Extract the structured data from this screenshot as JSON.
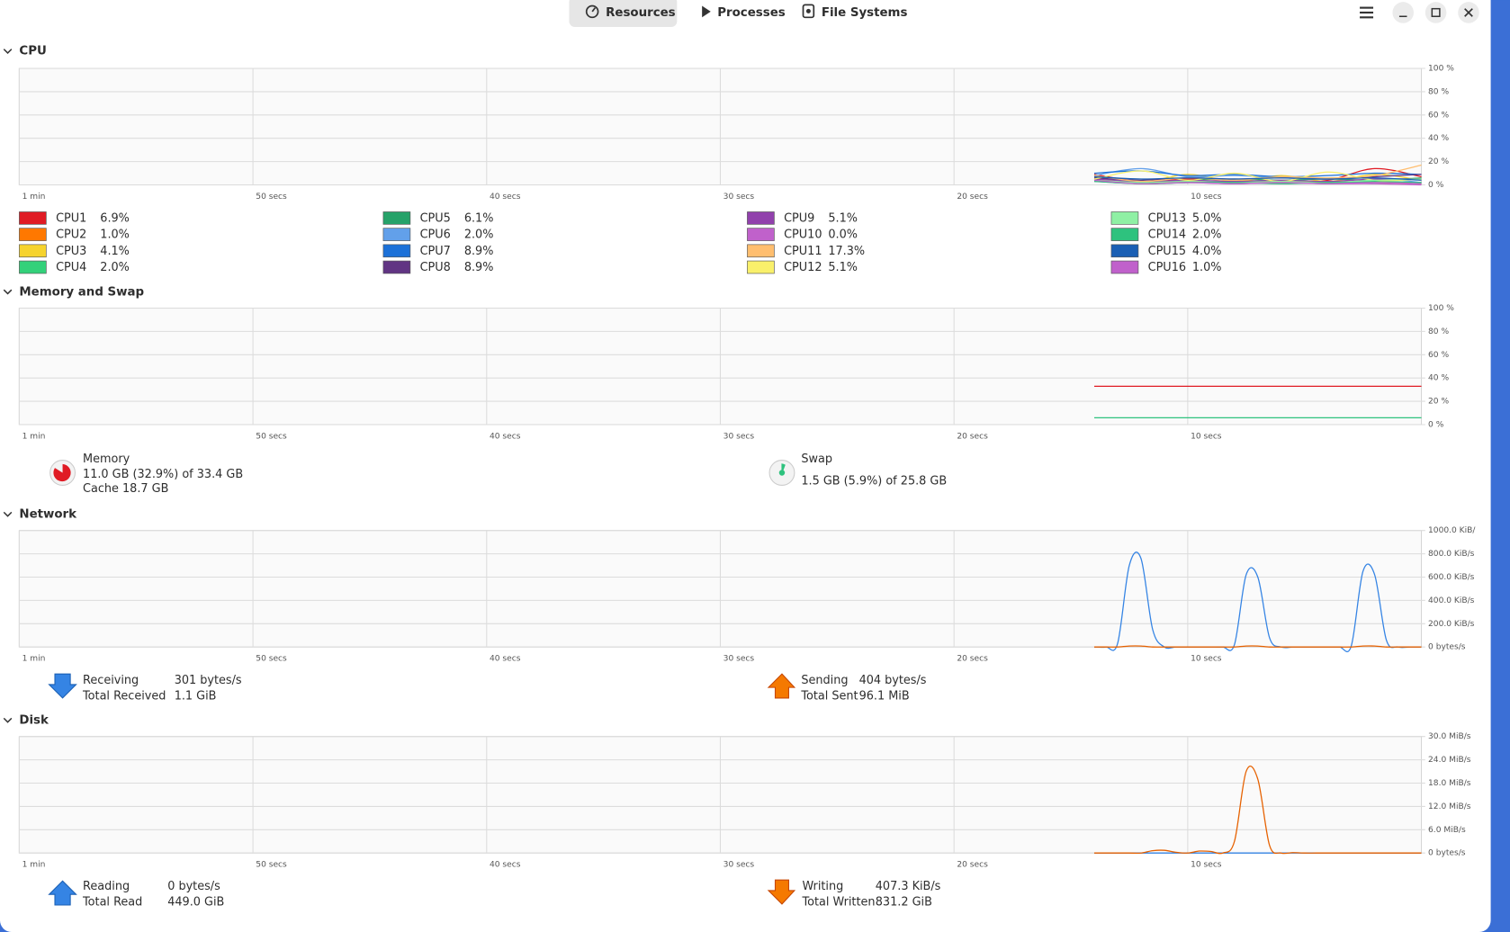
{
  "header": {
    "tabs": [
      "Resources",
      "Processes",
      "File Systems"
    ]
  },
  "chart_data": [
    {
      "type": "line",
      "title": "CPU",
      "xlim": [
        60,
        0
      ],
      "ylim": [
        0,
        100
      ],
      "xticks": [
        {
          "value": 60,
          "label": "1 min"
        },
        {
          "value": 50,
          "label": "50 secs"
        },
        {
          "value": 40,
          "label": "40 secs"
        },
        {
          "value": 30,
          "label": "30 secs"
        },
        {
          "value": 20,
          "label": "20 secs"
        },
        {
          "value": 10,
          "label": "10 secs"
        }
      ],
      "yticks": [
        {
          "value": 100,
          "label": "100 %"
        },
        {
          "value": 80,
          "label": "80 %"
        },
        {
          "value": 60,
          "label": "60 %"
        },
        {
          "value": 40,
          "label": "40 %"
        },
        {
          "value": 20,
          "label": "20 %"
        },
        {
          "value": 0,
          "label": "0 %"
        }
      ],
      "x": [
        14,
        12,
        10,
        8,
        6,
        4,
        2,
        0
      ],
      "series": [
        {
          "name": "CPU1",
          "color": "#e01b24",
          "info": [
            "6.9%"
          ],
          "values": [
            9,
            3,
            5,
            4,
            3,
            4,
            14,
            7
          ]
        },
        {
          "name": "CPU2",
          "color": "#ff7800",
          "info": [
            "1.0%"
          ],
          "values": [
            5,
            2,
            3,
            2,
            2,
            3,
            2,
            1
          ]
        },
        {
          "name": "CPU3",
          "color": "#f6d32d",
          "info": [
            "4.1%"
          ],
          "values": [
            6,
            2,
            9,
            3,
            8,
            3,
            9,
            4
          ]
        },
        {
          "name": "CPU4",
          "color": "#33d17a",
          "info": [
            "2.0%"
          ],
          "values": [
            4,
            1,
            2,
            3,
            2,
            2,
            3,
            2
          ]
        },
        {
          "name": "CPU5",
          "color": "#26a269",
          "info": [
            "6.1%"
          ],
          "values": [
            7,
            2,
            4,
            5,
            4,
            5,
            4,
            6
          ]
        },
        {
          "name": "CPU6",
          "color": "#62a0ea",
          "info": [
            "2.0%"
          ],
          "values": [
            8,
            14,
            7,
            8,
            6,
            5,
            6,
            2
          ]
        },
        {
          "name": "CPU7",
          "color": "#1c71d8",
          "info": [
            "8.9%"
          ],
          "values": [
            10,
            12,
            8,
            9,
            7,
            8,
            10,
            9
          ]
        },
        {
          "name": "CPU8",
          "color": "#613583",
          "info": [
            "8.9%"
          ],
          "values": [
            6,
            4,
            6,
            5,
            6,
            5,
            7,
            9
          ]
        },
        {
          "name": "CPU9",
          "color": "#9141ac",
          "info": [
            "5.1%"
          ],
          "values": [
            5,
            3,
            4,
            3,
            4,
            3,
            5,
            5
          ]
        },
        {
          "name": "CPU10",
          "color": "#c061cb",
          "info": [
            "0.0%"
          ],
          "values": [
            3,
            1,
            2,
            1,
            2,
            1,
            1,
            0
          ]
        },
        {
          "name": "CPU11",
          "color": "#ffbe6f",
          "info": [
            "17.3%"
          ],
          "values": [
            8,
            3,
            6,
            4,
            7,
            6,
            8,
            17
          ]
        },
        {
          "name": "CPU12",
          "color": "#f9f06b",
          "info": [
            "5.1%"
          ],
          "values": [
            5,
            12,
            4,
            10,
            3,
            11,
            4,
            5
          ]
        },
        {
          "name": "CPU13",
          "color": "#8ff0a4",
          "info": [
            "5.0%"
          ],
          "values": [
            4,
            2,
            3,
            2,
            3,
            2,
            4,
            5
          ]
        },
        {
          "name": "CPU14",
          "color": "#2ec27e",
          "info": [
            "2.0%"
          ],
          "values": [
            3,
            1,
            2,
            2,
            1,
            2,
            2,
            2
          ]
        },
        {
          "name": "CPU15",
          "color": "#1a5fb4",
          "info": [
            "4.0%"
          ],
          "values": [
            7,
            5,
            6,
            5,
            6,
            5,
            6,
            4
          ]
        },
        {
          "name": "CPU16",
          "color": "#c061cb",
          "info": [
            "1.0%"
          ],
          "values": [
            4,
            1,
            2,
            1,
            2,
            1,
            2,
            1
          ]
        }
      ]
    },
    {
      "type": "line",
      "title": "Memory and Swap",
      "xlim": [
        60,
        0
      ],
      "ylim": [
        0,
        100
      ],
      "xticks": [
        {
          "value": 60,
          "label": "1 min"
        },
        {
          "value": 50,
          "label": "50 secs"
        },
        {
          "value": 40,
          "label": "40 secs"
        },
        {
          "value": 30,
          "label": "30 secs"
        },
        {
          "value": 20,
          "label": "20 secs"
        },
        {
          "value": 10,
          "label": "10 secs"
        }
      ],
      "yticks": [
        {
          "value": 100,
          "label": "100 %"
        },
        {
          "value": 80,
          "label": "80 %"
        },
        {
          "value": 60,
          "label": "60 %"
        },
        {
          "value": 40,
          "label": "40 %"
        },
        {
          "value": 20,
          "label": "20 %"
        },
        {
          "value": 0,
          "label": "0 %"
        }
      ],
      "x": [
        14,
        0
      ],
      "series": [
        {
          "name": "Memory",
          "color": "#e01b24",
          "info": [
            "11.0 GB (32.9%) of 33.4 GB",
            "Cache 18.7 GB"
          ],
          "values": [
            32.9,
            32.9
          ]
        },
        {
          "name": "Swap",
          "color": "#2ec27e",
          "info": [
            "1.5 GB (5.9%) of 25.8 GB"
          ],
          "values": [
            5.9,
            5.9
          ]
        }
      ]
    },
    {
      "type": "line",
      "title": "Network",
      "xlim": [
        60,
        0
      ],
      "ylim": [
        0,
        1000
      ],
      "xticks": [
        {
          "value": 60,
          "label": "1 min"
        },
        {
          "value": 50,
          "label": "50 secs"
        },
        {
          "value": 40,
          "label": "40 secs"
        },
        {
          "value": 30,
          "label": "30 secs"
        },
        {
          "value": 20,
          "label": "20 secs"
        },
        {
          "value": 10,
          "label": "10 secs"
        }
      ],
      "yticks": [
        {
          "value": 1000,
          "label": "1000.0 KiB/"
        },
        {
          "value": 800,
          "label": "800.0 KiB/s"
        },
        {
          "value": 600,
          "label": "600.0 KiB/s"
        },
        {
          "value": 400,
          "label": "400.0 KiB/s"
        },
        {
          "value": 200,
          "label": "200.0 KiB/s"
        },
        {
          "value": 0,
          "label": "0 bytes/s"
        }
      ],
      "x": [
        14,
        13.5,
        13,
        12.5,
        12,
        11.5,
        11,
        10.5,
        10,
        9.5,
        9,
        8.5,
        8,
        7.5,
        7,
        6.5,
        6,
        5.5,
        5,
        4.5,
        4,
        3.5,
        3,
        2.5,
        2,
        1.5,
        1,
        0.5,
        0
      ],
      "series": [
        {
          "name": "Receiving",
          "color": "#3584e4",
          "info": [
            "301 bytes/s",
            "Total Received",
            "1.1 GiB"
          ],
          "values": [
            0,
            0,
            30,
            700,
            760,
            150,
            0,
            0,
            0,
            0,
            0,
            0,
            20,
            620,
            600,
            80,
            0,
            0,
            0,
            0,
            0,
            0,
            10,
            650,
            620,
            60,
            0,
            0,
            0
          ]
        },
        {
          "name": "Sending",
          "color": "#e66100",
          "info": [
            "404 bytes/s",
            "Total Sent",
            "96.1 MiB"
          ],
          "values": [
            0,
            0,
            0,
            8,
            8,
            0,
            0,
            0,
            0,
            0,
            0,
            0,
            0,
            8,
            8,
            0,
            0,
            0,
            0,
            0,
            0,
            0,
            0,
            8,
            8,
            0,
            0,
            0,
            0
          ]
        }
      ]
    },
    {
      "type": "line",
      "title": "Disk",
      "xlim": [
        60,
        0
      ],
      "ylim": [
        0,
        30
      ],
      "xticks": [
        {
          "value": 60,
          "label": "1 min"
        },
        {
          "value": 50,
          "label": "50 secs"
        },
        {
          "value": 40,
          "label": "40 secs"
        },
        {
          "value": 30,
          "label": "30 secs"
        },
        {
          "value": 20,
          "label": "20 secs"
        },
        {
          "value": 10,
          "label": "10 secs"
        }
      ],
      "yticks": [
        {
          "value": 30,
          "label": "30.0 MiB/s"
        },
        {
          "value": 24,
          "label": "24.0 MiB/s"
        },
        {
          "value": 18,
          "label": "18.0 MiB/s"
        },
        {
          "value": 12,
          "label": "12.0 MiB/s"
        },
        {
          "value": 6,
          "label": "6.0 MiB/s"
        },
        {
          "value": 0,
          "label": "0 bytes/s"
        }
      ],
      "x": [
        14,
        13.5,
        13,
        12.5,
        12,
        11.5,
        11,
        10.5,
        10,
        9.5,
        9,
        8.5,
        8,
        7.5,
        7,
        6.5,
        6,
        5.5,
        5,
        4.5,
        4,
        3.5,
        3,
        2.5,
        2,
        1.5,
        1,
        0.5,
        0
      ],
      "series": [
        {
          "name": "Reading",
          "color": "#3584e4",
          "info": [
            "0 bytes/s",
            "Total Read",
            "449.0 GiB"
          ],
          "values": [
            0,
            0,
            0,
            0,
            0,
            0,
            0,
            0,
            0,
            0,
            0,
            0,
            0,
            0,
            0,
            0,
            0,
            0,
            0,
            0,
            0,
            0,
            0,
            0,
            0,
            0,
            0,
            0,
            0
          ]
        },
        {
          "name": "Writing",
          "color": "#e66100",
          "info": [
            "407.3 KiB/s",
            "Total Written",
            "831.2 GiB"
          ],
          "values": [
            0,
            0,
            0,
            0,
            0,
            0.6,
            0.7,
            0.2,
            0,
            0.5,
            0.4,
            0,
            3,
            21,
            19,
            2,
            0,
            0.1,
            0,
            0,
            0,
            0,
            0,
            0,
            0,
            0,
            0,
            0,
            0
          ]
        }
      ]
    }
  ]
}
